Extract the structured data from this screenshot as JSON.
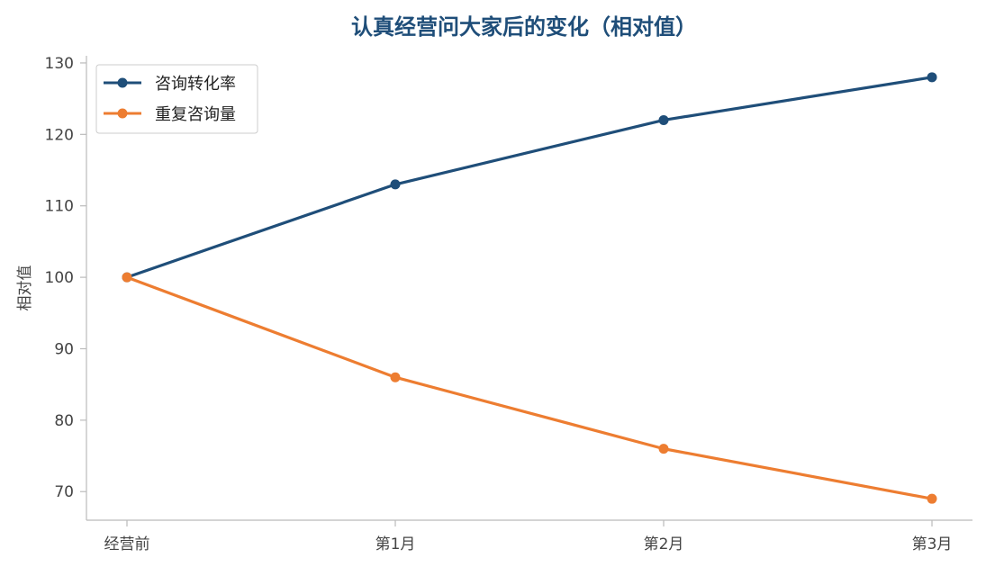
{
  "chart_data": {
    "type": "line",
    "title": "认真经营问大家后的变化（相对值）",
    "xlabel": "",
    "ylabel": "相对值",
    "categories": [
      "经营前",
      "第1月",
      "第2月",
      "第3月"
    ],
    "ylim": [
      66,
      131
    ],
    "yticks": [
      70,
      80,
      90,
      100,
      110,
      120,
      130
    ],
    "grid": false,
    "legend_position": "top-left",
    "series": [
      {
        "name": "咨询转化率",
        "values": [
          100,
          113,
          122,
          128
        ]
      },
      {
        "name": "重复咨询量",
        "values": [
          100,
          86,
          76,
          69
        ]
      }
    ]
  },
  "colors": {
    "title": "#1f4e79",
    "series": [
      "#1f4e79",
      "#ed7d31"
    ],
    "axis": "#bbbbbb"
  }
}
